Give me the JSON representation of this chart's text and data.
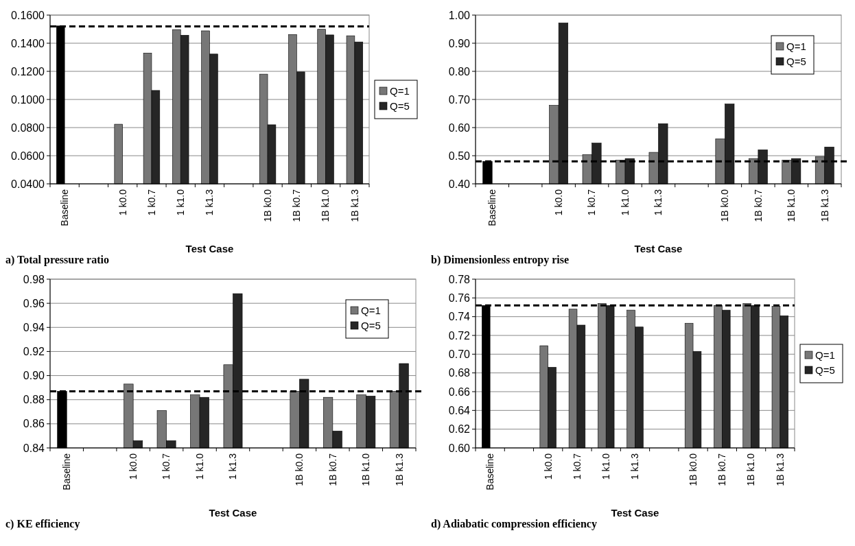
{
  "chart_data": [
    {
      "type": "bar",
      "title": "a) Total pressure ratio",
      "xlabel": "Test Case",
      "categories": [
        "Baseline",
        null,
        "1 k0.0",
        "1 k0.7",
        "1 k1.0",
        "1 k1.3",
        null,
        "1B k0.0",
        "1B k0.7",
        "1B k1.0",
        "1B k1.3"
      ],
      "series": [
        {
          "name": "Q=1",
          "color": "#777777",
          "colors": [
            "#000000",
            null,
            "#777777",
            "#777777",
            "#777777",
            "#777777",
            null,
            "#777777",
            "#777777",
            "#777777",
            "#777777"
          ],
          "values": [
            0.1523,
            null,
            0.0824,
            0.133,
            0.1497,
            0.1488,
            null,
            0.118,
            0.1462,
            0.1499,
            0.1453
          ]
        },
        {
          "name": "Q=5",
          "color": "#262626",
          "values": [
            null,
            null,
            null,
            0.1064,
            0.1457,
            0.1323,
            null,
            0.082,
            0.1196,
            0.1459,
            0.1409
          ]
        }
      ],
      "ylim": [
        0.04,
        0.16
      ],
      "yticks": [
        {
          "value": 0.04,
          "label": "0.0400"
        },
        {
          "value": 0.06,
          "label": "0.0600"
        },
        {
          "value": 0.08,
          "label": "0.0800"
        },
        {
          "value": 0.1,
          "label": "0.1000"
        },
        {
          "value": 0.12,
          "label": "0.1200"
        },
        {
          "value": 0.14,
          "label": "0.1400"
        },
        {
          "value": 0.16,
          "label": "0.1600"
        }
      ],
      "grid": "y",
      "legend": "right",
      "ref_lines": [
        {
          "axis": "y",
          "value": 0.152,
          "color": "#000000",
          "line_style": "dashed"
        }
      ]
    },
    {
      "type": "bar",
      "title": "b) Dimensionless entropy rise",
      "xlabel": "Test Case",
      "categories": [
        "Baseline",
        null,
        "1 k0.0",
        "1 k0.7",
        "1 k1.0",
        "1 k1.3",
        null,
        "1B k0.0",
        "1B k0.7",
        "1B k1.0",
        "1B k1.3"
      ],
      "series": [
        {
          "name": "Q=1",
          "color": "#777777",
          "colors": [
            "#000000",
            null,
            "#777777",
            "#777777",
            "#777777",
            "#777777",
            null,
            "#777777",
            "#777777",
            "#777777",
            "#777777"
          ],
          "values": [
            0.48,
            null,
            0.679,
            0.504,
            0.484,
            0.512,
            null,
            0.56,
            0.49,
            0.484,
            0.497
          ]
        },
        {
          "name": "Q=5",
          "color": "#262626",
          "values": [
            null,
            null,
            0.972,
            0.545,
            0.49,
            0.614,
            null,
            0.684,
            0.521,
            0.49,
            0.531
          ]
        }
      ],
      "ylim": [
        0.4,
        1.0
      ],
      "yticks": [
        {
          "value": 0.4,
          "label": "0.40"
        },
        {
          "value": 0.5,
          "label": "0.50"
        },
        {
          "value": 0.6,
          "label": "0.60"
        },
        {
          "value": 0.7,
          "label": "0.70"
        },
        {
          "value": 0.8,
          "label": "0.80"
        },
        {
          "value": 0.9,
          "label": "0.90"
        },
        {
          "value": 1.0,
          "label": "1.00"
        }
      ],
      "grid": "y",
      "legend": "top right",
      "ref_lines": [
        {
          "axis": "y",
          "value": 0.48,
          "color": "#000000",
          "line_style": "dashed"
        }
      ]
    },
    {
      "type": "bar",
      "title": "c) KE efficiency",
      "xlabel": "Test Case",
      "categories": [
        "Baseline",
        null,
        "1 k0.0",
        "1 k0.7",
        "1 k1.0",
        "1 k1.3",
        null,
        "1B k0.0",
        "1B k0.7",
        "1B k1.0",
        "1B k1.3"
      ],
      "series": [
        {
          "name": "Q=1",
          "color": "#777777",
          "colors": [
            "#000000",
            null,
            "#777777",
            "#777777",
            "#777777",
            "#777777",
            null,
            "#777777",
            "#777777",
            "#777777",
            "#777777"
          ],
          "values": [
            0.887,
            null,
            0.893,
            0.871,
            0.884,
            0.909,
            null,
            0.887,
            0.882,
            0.884,
            0.887
          ]
        },
        {
          "name": "Q=5",
          "color": "#262626",
          "values": [
            null,
            null,
            0.846,
            0.846,
            0.882,
            0.968,
            null,
            0.897,
            0.854,
            0.883,
            0.91
          ]
        }
      ],
      "ylim": [
        0.84,
        0.98
      ],
      "yticks": [
        0.84,
        0.86,
        0.88,
        {
          "value": 0.9,
          "label": "0.90"
        },
        0.92,
        0.94,
        0.96,
        0.98
      ],
      "grid": "y",
      "legend": "top right",
      "ref_lines": [
        {
          "axis": "y",
          "value": 0.887,
          "color": "#000000",
          "line_style": "dashed"
        }
      ]
    },
    {
      "type": "bar",
      "title": "d) Adiabatic compression efficiency",
      "xlabel": "Test Case",
      "categories": [
        "Baseline",
        null,
        "1 k0.0",
        "1 k0.7",
        "1 k1.0",
        "1 k1.3",
        null,
        "1B k0.0",
        "1B k0.7",
        "1B k1.0",
        "1B k1.3"
      ],
      "series": [
        {
          "name": "Q=1",
          "color": "#777777",
          "colors": [
            "#000000",
            null,
            "#777777",
            "#777777",
            "#777777",
            "#777777",
            null,
            "#777777",
            "#777777",
            "#777777",
            "#777777"
          ],
          "values": [
            0.752,
            null,
            0.709,
            0.748,
            0.754,
            0.747,
            null,
            0.733,
            0.752,
            0.754,
            0.751
          ]
        },
        {
          "name": "Q=5",
          "color": "#262626",
          "values": [
            null,
            null,
            0.686,
            0.731,
            0.752,
            0.729,
            null,
            0.703,
            0.747,
            0.752,
            0.741
          ]
        }
      ],
      "ylim": [
        0.6,
        0.78
      ],
      "yticks": [
        {
          "value": 0.6,
          "label": "0.60"
        },
        0.62,
        0.64,
        0.66,
        0.68,
        {
          "value": 0.7,
          "label": "0.70"
        },
        0.72,
        0.74,
        0.76,
        0.78
      ],
      "grid": "y",
      "legend": "right",
      "ref_lines": [
        {
          "axis": "y",
          "value": 0.752,
          "color": "#000000",
          "line_style": "dashed"
        }
      ]
    }
  ]
}
